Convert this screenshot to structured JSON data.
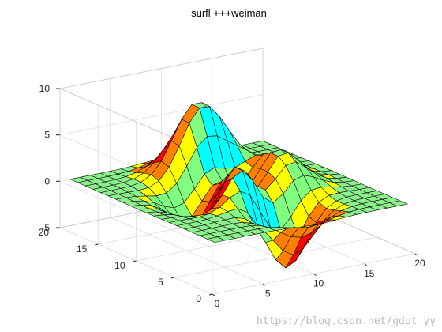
{
  "chart_data": {
    "type": "surface",
    "title": "surfl +++weiman",
    "xlabel": "",
    "ylabel": "",
    "zlabel": "",
    "function": "peaks",
    "grid_size": 20,
    "x_range": [
      0,
      20
    ],
    "y_range": [
      0,
      20
    ],
    "z_range": [
      -5,
      10
    ],
    "x_ticks": [
      0,
      5,
      10,
      15,
      20
    ],
    "y_ticks": [
      0,
      5,
      10,
      15,
      20
    ],
    "z_ticks": [
      -5,
      0,
      5,
      10
    ],
    "grid": true,
    "colormap": "jet",
    "peak_max": 8.1,
    "peak_min": -6.5,
    "face_colors": [
      "#00ffff",
      "#80ff80",
      "#ffff00",
      "#ff8000",
      "#ff0000"
    ]
  },
  "watermark": {
    "text": "https://blog.csdn.net/gdut_yy"
  }
}
